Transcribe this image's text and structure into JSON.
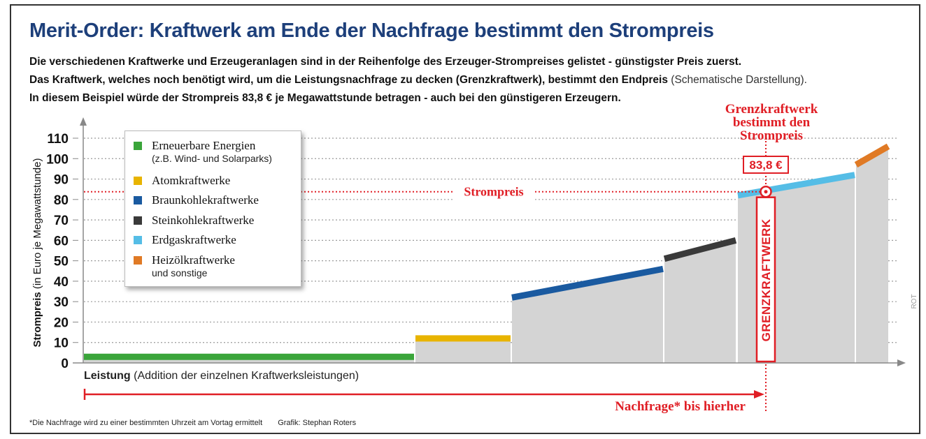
{
  "header": {
    "title": "Merit-Order: Kraftwerk am Ende der Nachfrage bestimmt den Strompreis",
    "line1": "Die verschiedenen Kraftwerke und Erzeugeranlagen sind in der Reihenfolge des Erzeuger-Strompreises gelistet - günstigster Preis zuerst.",
    "line2": "Das Kraftwerk, welches noch benötigt wird, um die Leistungsnachfrage zu decken (Grenzkraftwerk), bestimmt den Endpreis",
    "line2_note": "(Schematische Darstellung).",
    "line3": "In diesem Beispiel würde der Strompreis 83,8 € je Megawattstunde betragen - auch bei den günstigeren Erzeugern."
  },
  "legend": {
    "items": [
      {
        "label": "Erneuerbare Energien",
        "sub": "(z.B. Wind- und Solarparks)",
        "color": "#3aa53a"
      },
      {
        "label": "Atomkraftwerke",
        "sub": "",
        "color": "#e8b400"
      },
      {
        "label": "Braunkohlekraftwerke",
        "sub": "",
        "color": "#1a5aa0"
      },
      {
        "label": "Steinkohlekraftwerke",
        "sub": "",
        "color": "#3a3a3a"
      },
      {
        "label": "Erdgaskraftwerke",
        "sub": "",
        "color": "#55bde6"
      },
      {
        "label": "Heizölkraftwerke",
        "sub": "und sonstige",
        "color": "#e07a25"
      }
    ]
  },
  "annotations": {
    "grenz_title_1": "Grenzkraftwerk",
    "grenz_title_2": "bestimmt den",
    "grenz_title_3": "Strompreis",
    "price_box": "83,8 €",
    "strompreis_label": "Strompreis",
    "grenzkraftwerk_vertical": "GRENZKRAFTWERK",
    "nachfrage_label": "Nachfrage* bis hierher",
    "side_tag": "ROT"
  },
  "footer": {
    "footnote": "*Die Nachfrage wird zu einer bestimmten Uhrzeit am Vortag ermittelt",
    "credit": "Grafik: Stephan Roters"
  },
  "colors": {
    "title": "#1d3f7a",
    "accent_red": "#e01e25",
    "block_gray": "#d4d4d4"
  },
  "chart_data": {
    "type": "area",
    "title": "Merit-Order: Kraftwerk am Ende der Nachfrage bestimmt den Strompreis",
    "ylabel_bold": "Strompreis",
    "ylabel_unit": "(in Euro je Megawattstunde)",
    "xlabel_bold": "Leistung",
    "xlabel_note": "(Addition der einzelnen Kraftwerksleistungen)",
    "ylim": [
      0,
      110
    ],
    "yticks": [
      0,
      10,
      20,
      30,
      40,
      50,
      60,
      70,
      80,
      90,
      100,
      110
    ],
    "grid": true,
    "segments": [
      {
        "name": "Erneuerbare Energien",
        "color": "#3aa53a",
        "start_price": 3,
        "end_price": 3
      },
      {
        "name": "Atomkraftwerke",
        "color": "#e8b400",
        "start_price": 12,
        "end_price": 12
      },
      {
        "name": "Braunkohlekraftwerke",
        "color": "#1a5aa0",
        "start_price": 32,
        "end_price": 46
      },
      {
        "name": "Steinkohlekraftwerke",
        "color": "#3a3a3a",
        "start_price": 51,
        "end_price": 60
      },
      {
        "name": "Erdgaskraftwerke",
        "color": "#55bde6",
        "start_price": 82,
        "end_price": 92
      },
      {
        "name": "Heizölkraftwerke und sonstige",
        "color": "#e07a25",
        "start_price": 97,
        "end_price": 106
      }
    ],
    "market_price": 83.8
  }
}
